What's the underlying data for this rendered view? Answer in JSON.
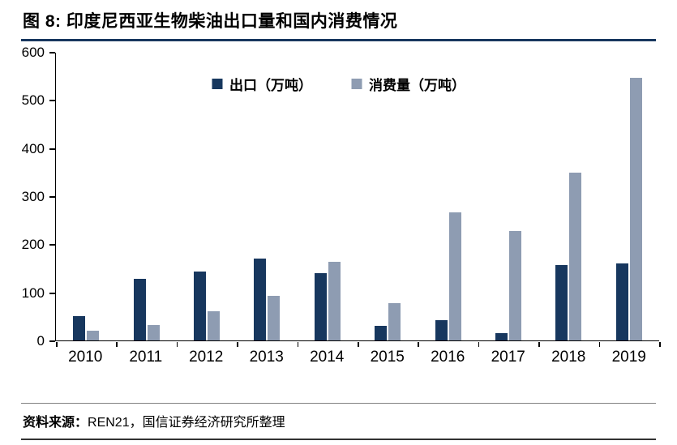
{
  "header": {
    "title": "图 8:  印度尼西亚生物柴油出口量和国内消费情况"
  },
  "footer": {
    "source_label": "资料来源：",
    "source_text": "REN21，国信证券经济研究所整理"
  },
  "colors": {
    "accent_navy": "#17375E",
    "bar_export": "#17375E",
    "bar_consumption": "#8E9CB2"
  },
  "chart_data": {
    "type": "bar",
    "title": "印度尼西亚生物柴油出口量和国内消费情况",
    "categories": [
      "2010",
      "2011",
      "2012",
      "2013",
      "2014",
      "2015",
      "2016",
      "2017",
      "2018",
      "2019"
    ],
    "series": [
      {
        "key": "export",
        "name": "出口（万吨）",
        "color": "#17375E",
        "values": [
          50,
          128,
          143,
          171,
          140,
          30,
          42,
          16,
          157,
          160
        ]
      },
      {
        "key": "consumption",
        "name": "消费量（万吨）",
        "color": "#8E9CB2",
        "values": [
          20,
          32,
          60,
          93,
          163,
          77,
          266,
          227,
          349,
          546
        ]
      }
    ],
    "xlabel": "",
    "ylabel": "",
    "ylim": [
      0,
      600
    ],
    "yticks": [
      0,
      100,
      200,
      300,
      400,
      500,
      600
    ],
    "grid": false,
    "legend_position": "top-center-inside"
  }
}
